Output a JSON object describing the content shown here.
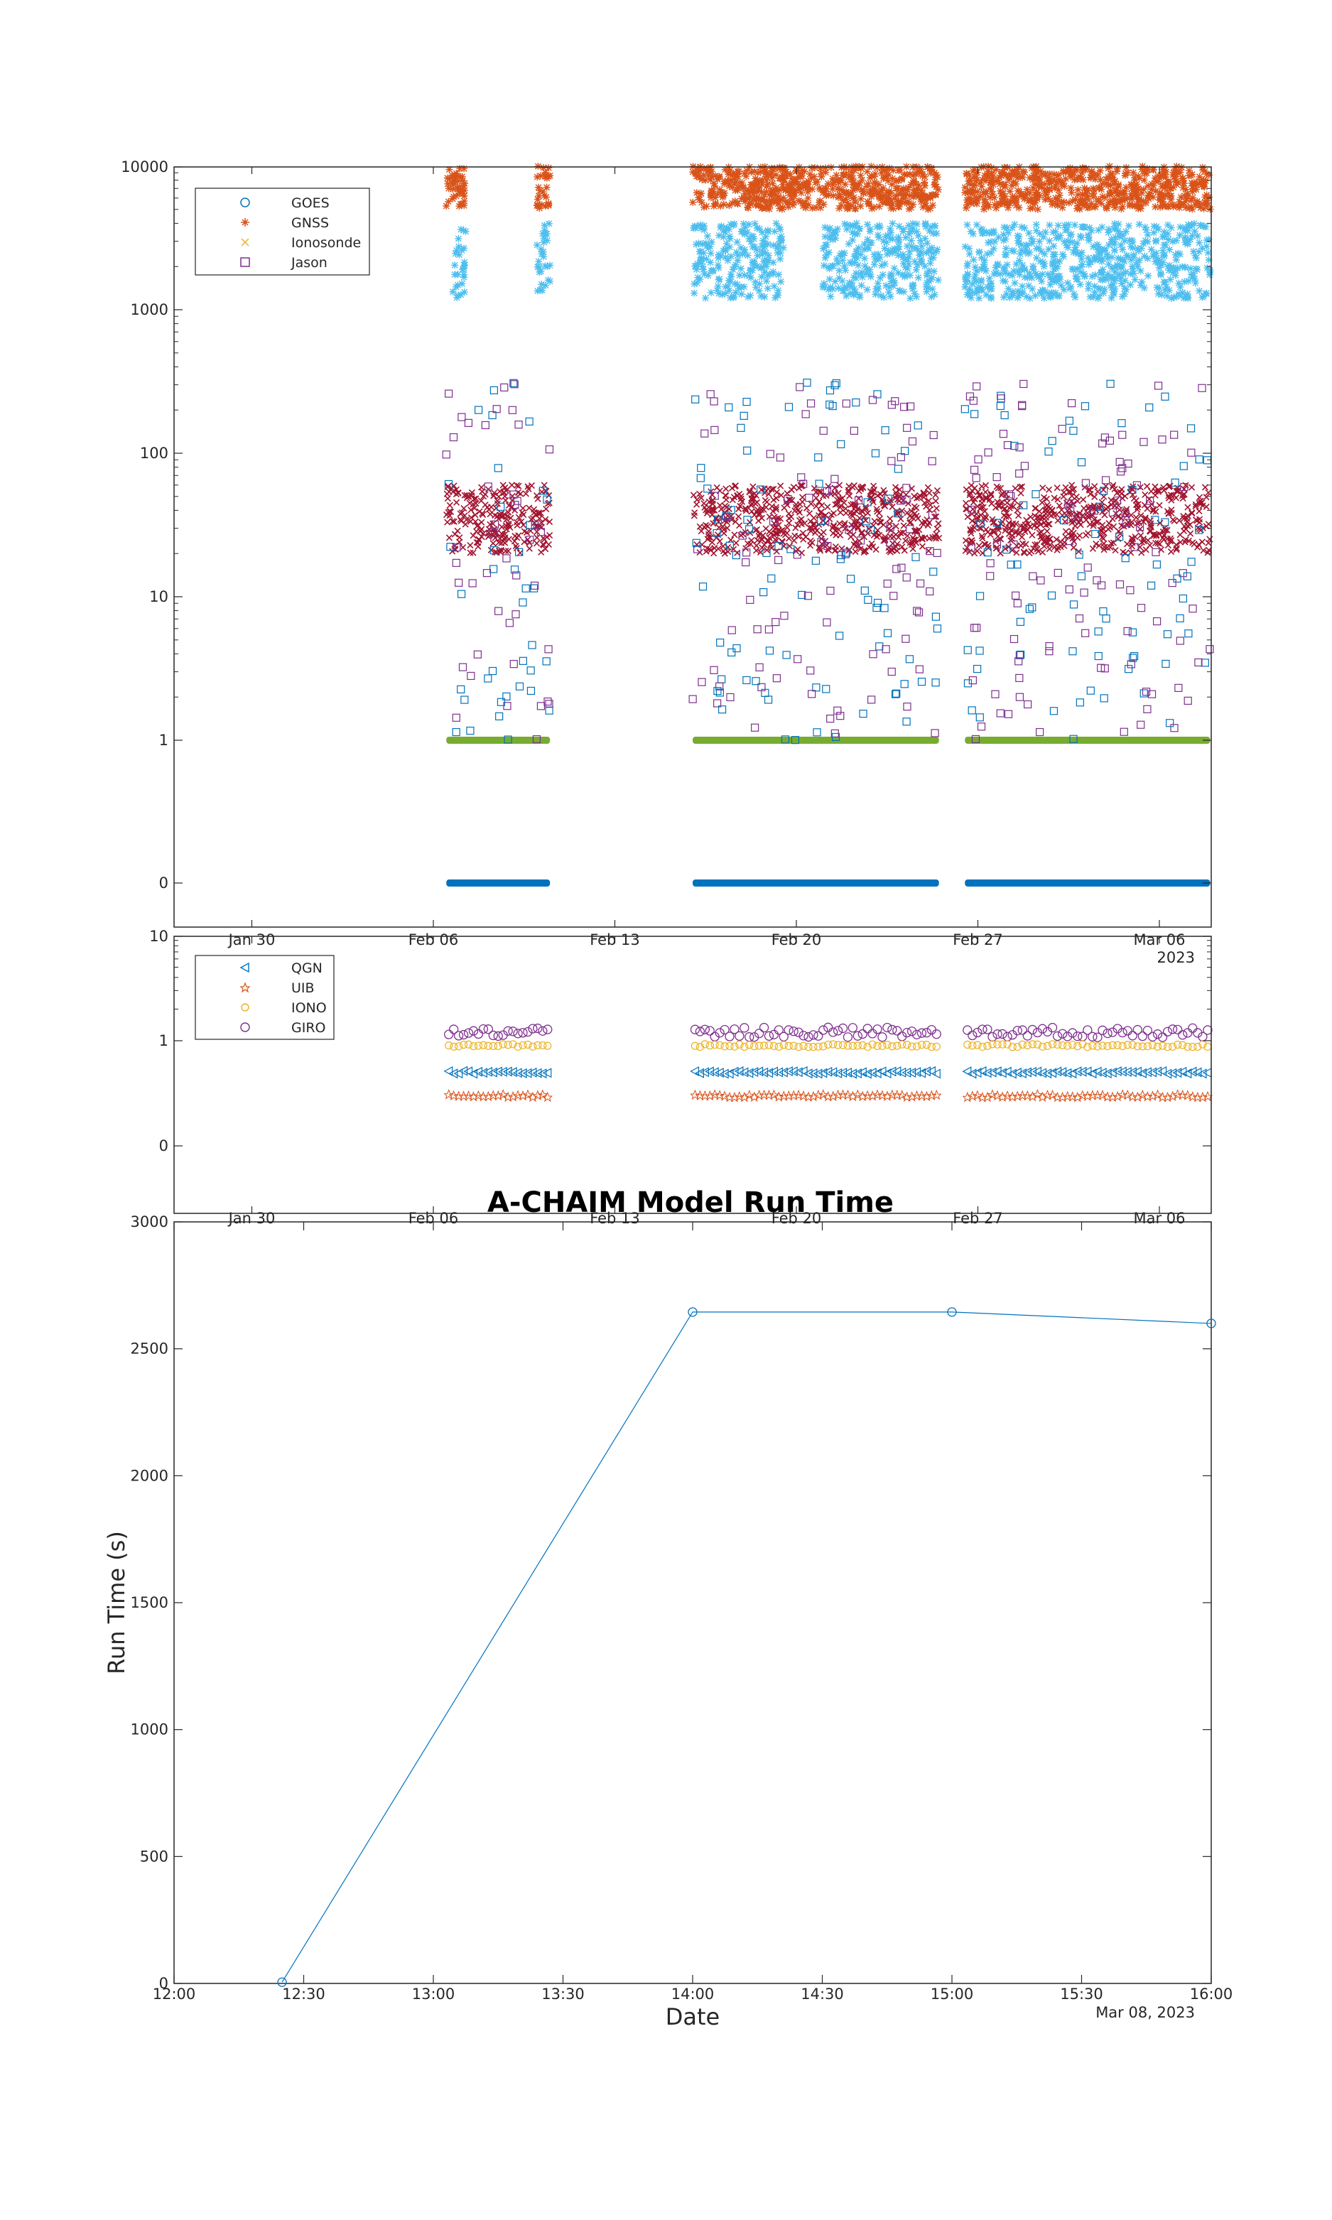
{
  "figure": {
    "title": "A-CHAIM Model Run Time"
  },
  "chart_data": [
    {
      "id": "panel1",
      "type": "scatter",
      "yscale": "log (with 0 row)",
      "legend_position": "top-left",
      "legend": [
        {
          "label": "GOES",
          "marker": "circle",
          "color": "#0072BD"
        },
        {
          "label": "GNSS",
          "marker": "asterisk",
          "color": "#D95319"
        },
        {
          "label": "Ionosonde",
          "marker": "x",
          "color": "#EDB120"
        },
        {
          "label": "Jason",
          "marker": "square",
          "color": "#7E2F8E"
        }
      ],
      "ytick_labels": [
        "0",
        "1",
        "10",
        "100",
        "1000",
        "10000"
      ],
      "xtick_labels": [
        "Jan 30",
        "Feb 06",
        "Feb 13",
        "Feb 20",
        "Feb 27",
        "Mar 06"
      ],
      "year_label": "2023",
      "xlim": [
        "2023-01-27",
        "2023-03-08"
      ],
      "series": [
        {
          "name": "GNSS",
          "color": "#D95319",
          "segments": [
            [
              "2023-02-06T12:00",
              "2023-02-07T06:00"
            ],
            [
              "2023-02-10T00:00",
              "2023-02-10T12:00"
            ],
            [
              "2023-02-16T00:00",
              "2023-02-19T12:00"
            ],
            [
              "2023-02-19T12:00",
              "2023-02-25T12:00"
            ],
            [
              "2023-02-26T12:00",
              "2023-03-07T23:00"
            ]
          ],
          "typical_value": 8500,
          "range": [
            5000,
            10000
          ]
        },
        {
          "name": "Cyan series",
          "color": "#4DBEEE",
          "segments": [
            [
              "2023-02-06T18:00",
              "2023-02-07T06:00"
            ],
            [
              "2023-02-10T00:00",
              "2023-02-10T12:00"
            ],
            [
              "2023-02-16T00:00",
              "2023-02-19T12:00"
            ],
            [
              "2023-02-21T00:00",
              "2023-02-25T12:00"
            ],
            [
              "2023-02-26T12:00",
              "2023-03-07T23:00"
            ]
          ],
          "typical_value": 2200,
          "range": [
            1200,
            4000
          ]
        },
        {
          "name": "Crimson series",
          "color": "#A2142F",
          "segments": [
            [
              "2023-02-06T12:00",
              "2023-02-10T12:00"
            ],
            [
              "2023-02-16T00:00",
              "2023-02-25T12:00"
            ],
            [
              "2023-02-26T12:00",
              "2023-03-07T23:00"
            ]
          ],
          "typical_value": 35,
          "range": [
            20,
            60
          ]
        },
        {
          "name": "Green series",
          "color": "#77AC30",
          "segments": [
            [
              "2023-02-06T12:00",
              "2023-02-10T12:00"
            ],
            [
              "2023-02-16T00:00",
              "2023-02-25T12:00"
            ],
            [
              "2023-02-26T12:00",
              "2023-03-07T23:00"
            ]
          ],
          "typical_value": 1
        },
        {
          "name": "GOES",
          "color": "#0072BD",
          "segments": [
            [
              "2023-02-06T12:00",
              "2023-02-10T12:00"
            ],
            [
              "2023-02-16T00:00",
              "2023-02-25T12:00"
            ],
            [
              "2023-02-26T12:00",
              "2023-03-07T23:00"
            ]
          ],
          "typical_value": 0
        }
      ]
    },
    {
      "id": "panel2",
      "type": "scatter",
      "yscale": "log (with 0 row)",
      "legend_position": "top-left",
      "legend": [
        {
          "label": "QGN",
          "marker": "triangle-left",
          "color": "#0072BD"
        },
        {
          "label": "UIB",
          "marker": "pentagram",
          "color": "#D95319"
        },
        {
          "label": "IONO",
          "marker": "hexagram",
          "color": "#EDB120"
        },
        {
          "label": "GIRO",
          "marker": "circle",
          "color": "#7E2F8E"
        }
      ],
      "ytick_labels": [
        "0",
        "1",
        "10"
      ],
      "xtick_labels": [
        "Jan 30",
        "Feb 06",
        "Feb 13",
        "Feb 20",
        "Feb 27",
        "Mar 06"
      ],
      "xlim": [
        "2023-01-27",
        "2023-03-08"
      ],
      "series": [
        {
          "name": "GIRO",
          "color": "#7E2F8E",
          "typical_value": 1.2
        },
        {
          "name": "IONO",
          "color": "#EDB120",
          "typical_value": 0.9
        },
        {
          "name": "QGN",
          "color": "#0072BD",
          "typical_value": 0.5
        },
        {
          "name": "UIB",
          "color": "#D95319",
          "typical_value": 0.3
        }
      ]
    },
    {
      "id": "panel3",
      "type": "line",
      "title": "A-CHAIM Model Run Time",
      "xlabel": "Date",
      "ylabel": "Run Time (s)",
      "ylim": [
        0,
        3000
      ],
      "yticks": [
        0,
        500,
        1000,
        1500,
        2000,
        2500,
        3000
      ],
      "xlim": [
        "12:00",
        "16:00"
      ],
      "xtick_labels": [
        "12:00",
        "12:30",
        "13:00",
        "13:30",
        "14:00",
        "14:30",
        "15:00",
        "15:30",
        "16:00"
      ],
      "date_label": "Mar 08, 2023",
      "color": "#0072BD",
      "x": [
        "12:25",
        "14:00",
        "15:00",
        "16:00"
      ],
      "y": [
        5,
        2645,
        2645,
        2600
      ]
    }
  ]
}
